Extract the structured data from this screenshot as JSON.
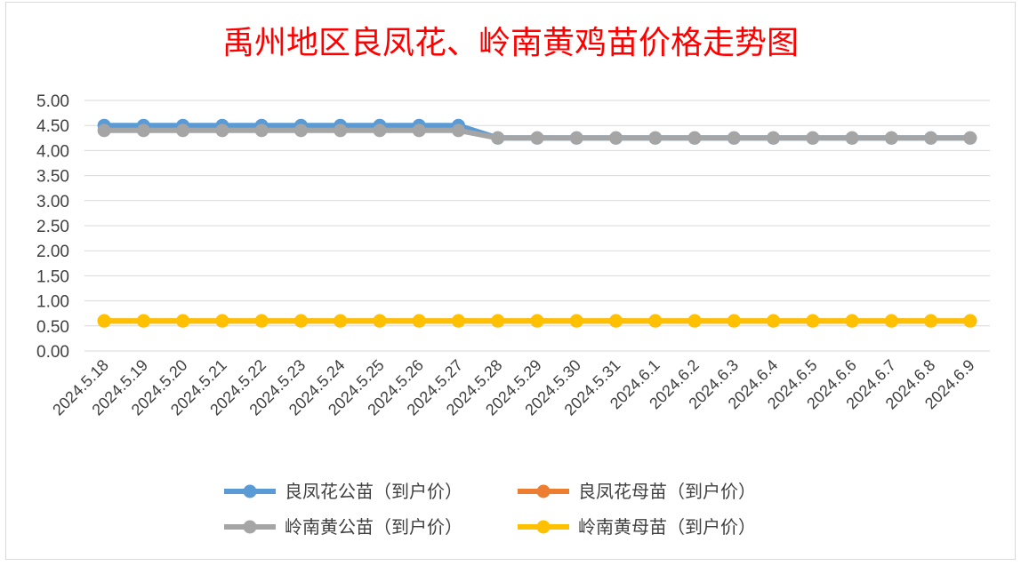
{
  "chart_data": {
    "type": "line",
    "title": "禹州地区良凤花、岭南黄鸡苗价格走势图",
    "xlabel": "",
    "ylabel": "",
    "ylim": [
      0,
      5
    ],
    "yticks": [
      "0.00",
      "0.50",
      "1.00",
      "1.50",
      "2.00",
      "2.50",
      "3.00",
      "3.50",
      "4.00",
      "4.50",
      "5.00"
    ],
    "grid": true,
    "legend_position": "bottom",
    "categories": [
      "2024.5.18",
      "2024.5.19",
      "2024.5.20",
      "2024.5.21",
      "2024.5.22",
      "2024.5.23",
      "2024.5.24",
      "2024.5.25",
      "2024.5.26",
      "2024.5.27",
      "2024.5.28",
      "2024.5.29",
      "2024.5.30",
      "2024.5.31",
      "2024.6.1",
      "2024.6.2",
      "2024.6.3",
      "2024.6.4",
      "2024.6.5",
      "2024.6.6",
      "2024.6.7",
      "2024.6.8",
      "2024.6.9"
    ],
    "series": [
      {
        "name": "良凤花公苗（到户价）",
        "color": "#5b9bd5",
        "values": [
          4.5,
          4.5,
          4.5,
          4.5,
          4.5,
          4.5,
          4.5,
          4.5,
          4.5,
          4.5,
          4.25,
          4.25,
          4.25,
          4.25,
          4.25,
          4.25,
          4.25,
          4.25,
          4.25,
          4.25,
          4.25,
          4.25,
          4.25
        ]
      },
      {
        "name": "良凤花母苗（到户价）",
        "color": "#ed7d31",
        "values": [
          0.6,
          0.6,
          0.6,
          0.6,
          0.6,
          0.6,
          0.6,
          0.6,
          0.6,
          0.6,
          0.6,
          0.6,
          0.6,
          0.6,
          0.6,
          0.6,
          0.6,
          0.6,
          0.6,
          0.6,
          0.6,
          0.6,
          0.6
        ]
      },
      {
        "name": "岭南黄公苗（到户价）",
        "color": "#a5a5a5",
        "values": [
          4.4,
          4.4,
          4.4,
          4.4,
          4.4,
          4.4,
          4.4,
          4.4,
          4.4,
          4.4,
          4.25,
          4.25,
          4.25,
          4.25,
          4.25,
          4.25,
          4.25,
          4.25,
          4.25,
          4.25,
          4.25,
          4.25,
          4.25
        ]
      },
      {
        "name": "岭南黄母苗（到户价）",
        "color": "#ffc000",
        "values": [
          0.6,
          0.6,
          0.6,
          0.6,
          0.6,
          0.6,
          0.6,
          0.6,
          0.6,
          0.6,
          0.6,
          0.6,
          0.6,
          0.6,
          0.6,
          0.6,
          0.6,
          0.6,
          0.6,
          0.6,
          0.6,
          0.6,
          0.6
        ]
      }
    ]
  }
}
